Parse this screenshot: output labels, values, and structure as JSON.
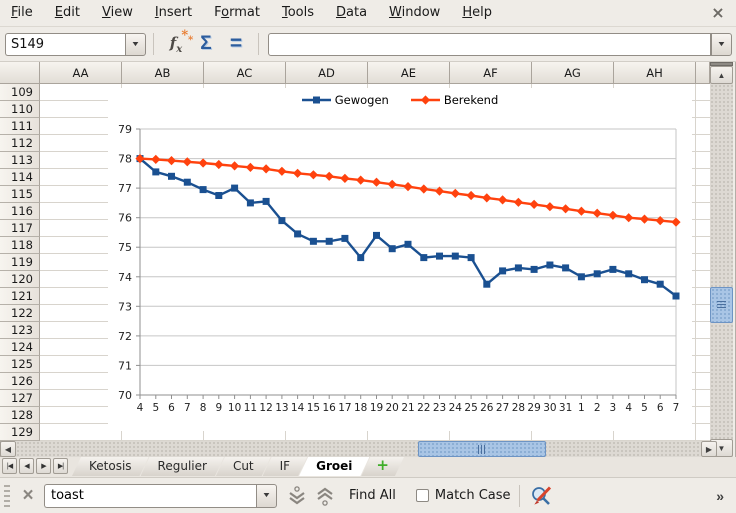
{
  "menubar": {
    "items": [
      {
        "label": "File",
        "u": 0
      },
      {
        "label": "Edit",
        "u": 0
      },
      {
        "label": "View",
        "u": 0
      },
      {
        "label": "Insert",
        "u": 0
      },
      {
        "label": "Format",
        "u": 1
      },
      {
        "label": "Tools",
        "u": 0
      },
      {
        "label": "Data",
        "u": 0
      },
      {
        "label": "Window",
        "u": 0
      },
      {
        "label": "Help",
        "u": 0
      }
    ]
  },
  "formula_bar": {
    "name_box_value": "S149",
    "formula_value": ""
  },
  "grid": {
    "columns": [
      "AA",
      "AB",
      "AC",
      "AD",
      "AE",
      "AF",
      "AG",
      "AH"
    ],
    "rows": [
      "109",
      "110",
      "111",
      "112",
      "113",
      "114",
      "115",
      "116",
      "117",
      "118",
      "119",
      "120",
      "121",
      "122",
      "123",
      "124",
      "125",
      "126",
      "127",
      "128",
      "129"
    ]
  },
  "chart_data": {
    "type": "line",
    "x": [
      4,
      5,
      6,
      7,
      8,
      9,
      10,
      11,
      12,
      13,
      14,
      15,
      16,
      17,
      18,
      19,
      20,
      21,
      22,
      23,
      24,
      25,
      26,
      27,
      28,
      29,
      30,
      31,
      1,
      2,
      3,
      4,
      5,
      6,
      7
    ],
    "series": [
      {
        "name": "Gewogen",
        "color": "#1a5091",
        "marker": "square",
        "values": [
          78.0,
          77.55,
          77.4,
          77.2,
          76.95,
          76.75,
          77.0,
          76.5,
          76.55,
          75.9,
          75.45,
          75.2,
          75.2,
          75.3,
          74.65,
          75.4,
          74.95,
          75.1,
          74.65,
          74.7,
          74.7,
          74.65,
          73.75,
          74.2,
          74.3,
          74.25,
          74.4,
          74.3,
          74.0,
          74.1,
          74.25,
          74.1,
          73.9,
          73.75,
          73.35
        ]
      },
      {
        "name": "Berekend",
        "color": "#ff420e",
        "marker": "diamond",
        "values": [
          78.0,
          77.97,
          77.93,
          77.89,
          77.85,
          77.8,
          77.75,
          77.7,
          77.65,
          77.57,
          77.5,
          77.45,
          77.4,
          77.33,
          77.27,
          77.2,
          77.13,
          77.05,
          76.97,
          76.9,
          76.82,
          76.75,
          76.67,
          76.6,
          76.52,
          76.45,
          76.37,
          76.3,
          76.22,
          76.15,
          76.08,
          76.0,
          75.95,
          75.9,
          75.85
        ]
      }
    ],
    "ylim": [
      70,
      79
    ],
    "yticks": [
      70,
      71,
      72,
      73,
      74,
      75,
      76,
      77,
      78,
      79
    ],
    "grid": true,
    "legend_position": "top",
    "title": ""
  },
  "sheet_tabs": {
    "nav": [
      "|◀",
      "◀",
      "▶",
      "▶|"
    ],
    "tabs": [
      "Ketosis",
      "Regulier",
      "Cut",
      "IF",
      "Groei"
    ],
    "active_tab": "Groei",
    "add_tab_label": "+"
  },
  "find_bar": {
    "search_value": "toast",
    "find_all_label": "Find All",
    "match_case_label": "Match Case",
    "match_case_checked": false,
    "overflow_label": "»"
  },
  "icons": {
    "close": "×",
    "dropdown": "▼"
  }
}
